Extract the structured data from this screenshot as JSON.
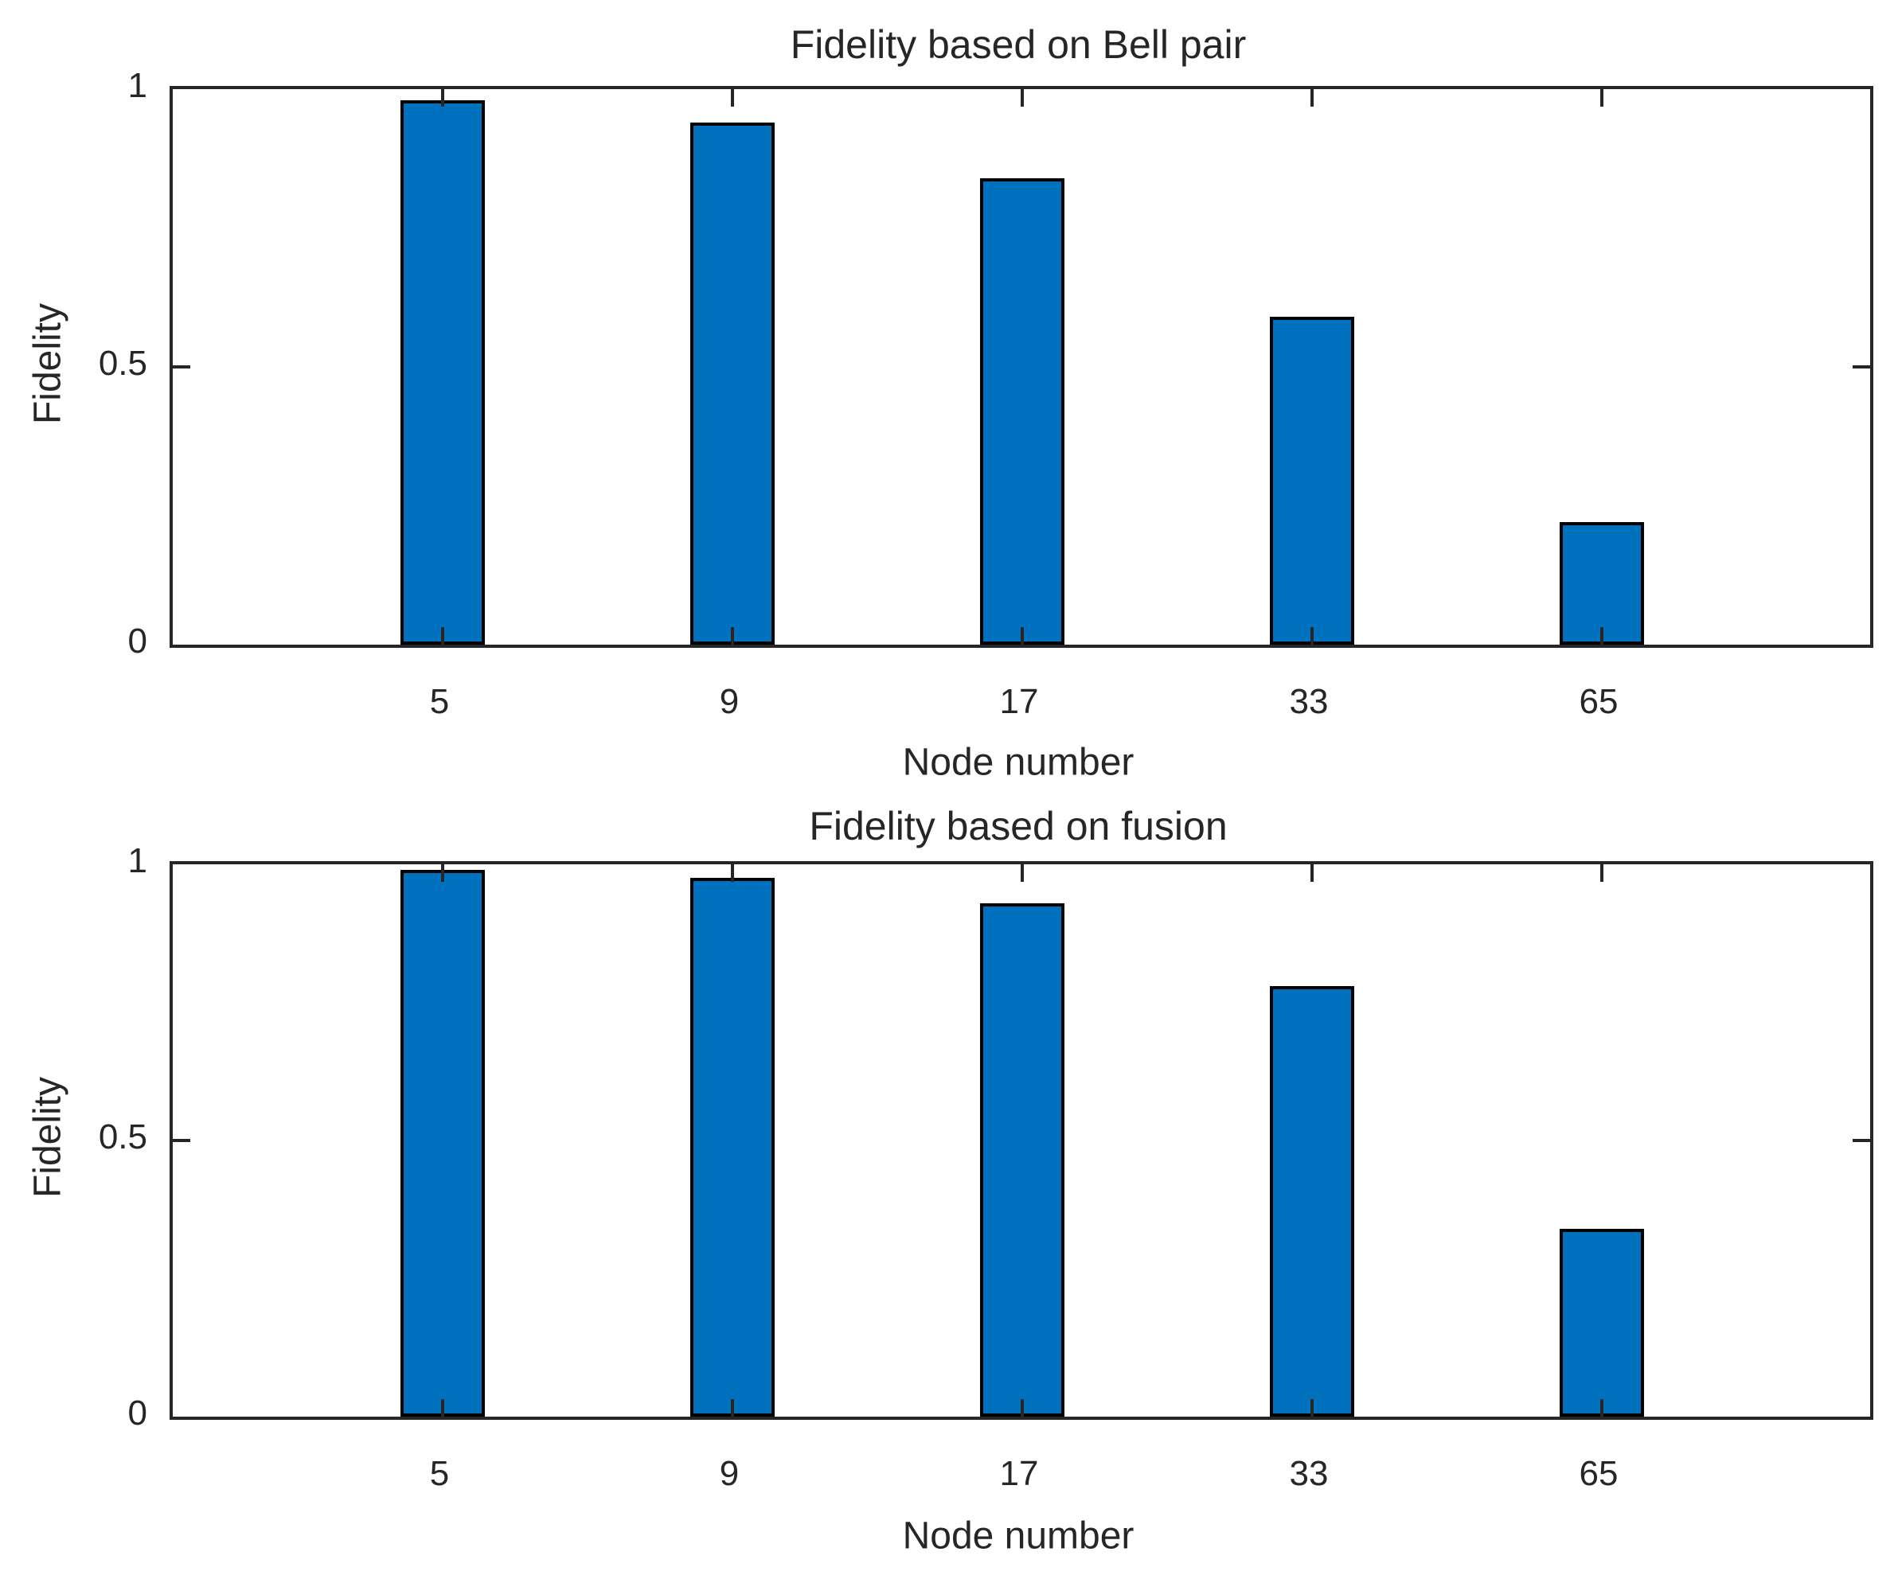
{
  "figure": {
    "background": "#ffffff",
    "colors": {
      "bar_fill": "#0072BD",
      "bar_edge": "#000000",
      "axis": "#262626",
      "text": "#262626"
    }
  },
  "chart_data": [
    {
      "type": "bar",
      "title": "Fidelity based on Bell pair",
      "xlabel": "Node number",
      "ylabel": "Fidelity",
      "categories": [
        "5",
        "9",
        "17",
        "33",
        "65"
      ],
      "values": [
        0.98,
        0.94,
        0.84,
        0.59,
        0.22
      ],
      "ylim": [
        0,
        1
      ],
      "yticks": [
        {
          "value": 0,
          "label": "0"
        },
        {
          "value": 0.5,
          "label": "0.5"
        },
        {
          "value": 1,
          "label": "1"
        }
      ],
      "grid": false
    },
    {
      "type": "bar",
      "title": "Fidelity based on fusion",
      "xlabel": "Node number",
      "ylabel": "Fidelity",
      "categories": [
        "5",
        "9",
        "17",
        "33",
        "65"
      ],
      "values": [
        0.99,
        0.975,
        0.93,
        0.78,
        0.34
      ],
      "ylim": [
        0,
        1
      ],
      "yticks": [
        {
          "value": 0,
          "label": "0"
        },
        {
          "value": 0.5,
          "label": "0.5"
        },
        {
          "value": 1,
          "label": "1"
        }
      ],
      "grid": false
    }
  ]
}
